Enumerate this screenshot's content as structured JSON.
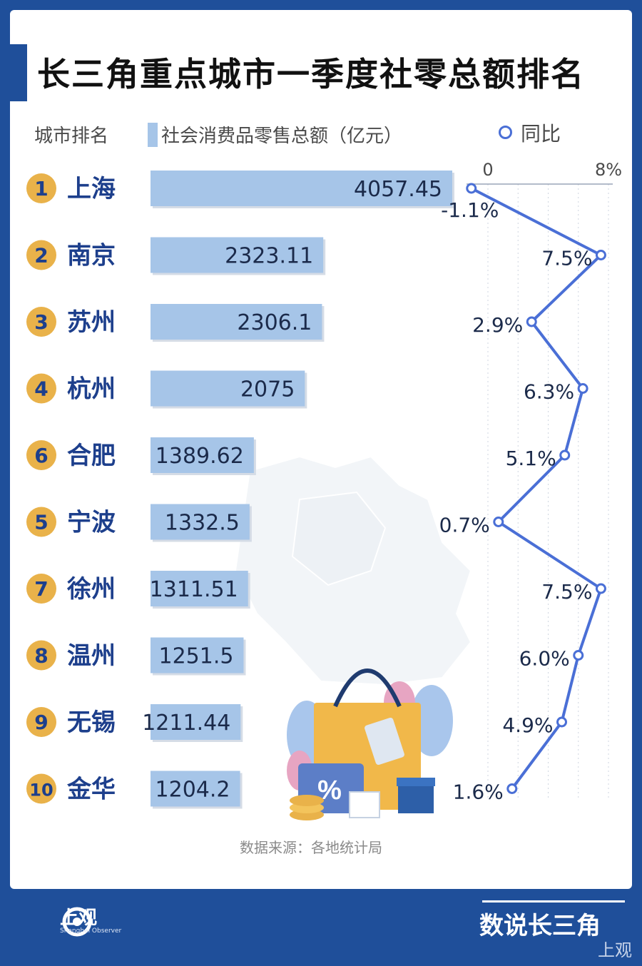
{
  "title": "长三角重点城市一季度社零总额排名",
  "legend": {
    "rank_label": "城市排名",
    "bar_label": "社会消费品零售总额（亿元）",
    "line_label": "同比"
  },
  "source": "数据来源：各地统计局",
  "footer": {
    "logo_text": "上观",
    "logo_sub": "Shanghai Observer",
    "right_text": "数说长三角",
    "watermark": "上观"
  },
  "colors": {
    "bar": "#a6c5e8",
    "line": "#4a6fd6",
    "rank_badge": "#e9b24a",
    "city_text": "#1d3f8c",
    "brand": "#1f4f9a"
  },
  "chart_data": {
    "type": "bar+line",
    "bar_series": {
      "name": "社会消费品零售总额（亿元）",
      "unit": "亿元"
    },
    "line_series": {
      "name": "同比",
      "axis_ticks": [
        "0",
        "8%"
      ],
      "xlim": [
        -1.1,
        8
      ]
    },
    "rows": [
      {
        "rank": "1",
        "city": "上海",
        "value": 4057.45,
        "value_label": "4057.45",
        "yoy": -1.1,
        "yoy_label": "-1.1%"
      },
      {
        "rank": "2",
        "city": "南京",
        "value": 2323.11,
        "value_label": "2323.11",
        "yoy": 7.5,
        "yoy_label": "7.5%"
      },
      {
        "rank": "3",
        "city": "苏州",
        "value": 2306.1,
        "value_label": "2306.1",
        "yoy": 2.9,
        "yoy_label": "2.9%"
      },
      {
        "rank": "4",
        "city": "杭州",
        "value": 2075,
        "value_label": "2075",
        "yoy": 6.3,
        "yoy_label": "6.3%"
      },
      {
        "rank": "6",
        "city": "合肥",
        "value": 1389.62,
        "value_label": "1389.62",
        "yoy": 5.1,
        "yoy_label": "5.1%"
      },
      {
        "rank": "5",
        "city": "宁波",
        "value": 1332.5,
        "value_label": "1332.5",
        "yoy": 0.7,
        "yoy_label": "0.7%"
      },
      {
        "rank": "7",
        "city": "徐州",
        "value": 1311.51,
        "value_label": "1311.51",
        "yoy": 7.5,
        "yoy_label": "7.5%"
      },
      {
        "rank": "8",
        "city": "温州",
        "value": 1251.5,
        "value_label": "1251.5",
        "yoy": 6.0,
        "yoy_label": "6.0%"
      },
      {
        "rank": "9",
        "city": "无锡",
        "value": 1211.44,
        "value_label": "1211.44",
        "yoy": 4.9,
        "yoy_label": "4.9%"
      },
      {
        "rank": "10",
        "city": "金华",
        "value": 1204.2,
        "value_label": "1204.2",
        "yoy": 1.6,
        "yoy_label": "1.6%"
      }
    ]
  }
}
